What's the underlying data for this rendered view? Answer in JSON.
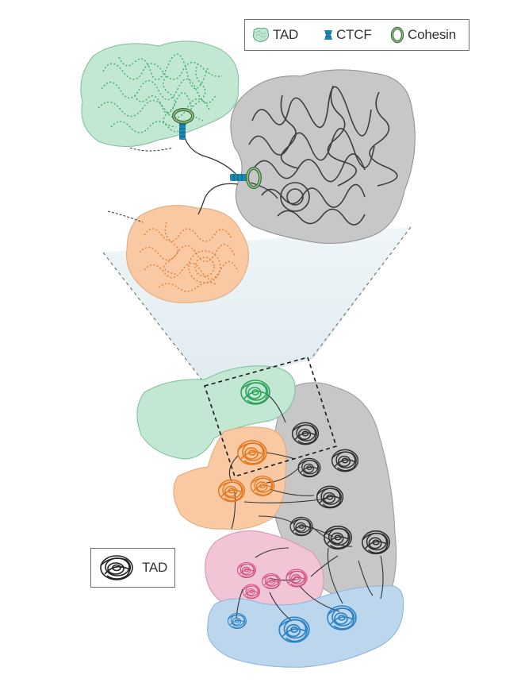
{
  "legend": {
    "items": [
      {
        "label": "TAD",
        "icon": "tad-blob-icon",
        "color": "#bfe6d2"
      },
      {
        "label": "CTCF",
        "icon": "ctcf-icon",
        "color": "#1e88b4"
      },
      {
        "label": "Cohesin",
        "icon": "cohesin-ring-icon",
        "color": "#3d6e3b"
      }
    ]
  },
  "inset_legend": {
    "label": "TAD",
    "icon": "tad-coil-icon"
  },
  "colors": {
    "green": "#c2e7d3",
    "green_line": "#3fae6a",
    "gray": "#c7c7c7",
    "gray_line": "#444444",
    "orange": "#f8c9a3",
    "orange_line": "#e27a2b",
    "pink": "#f1c4d6",
    "pink_line": "#d0557f",
    "blue": "#bcd6ee",
    "blue_line": "#2f86c9"
  }
}
